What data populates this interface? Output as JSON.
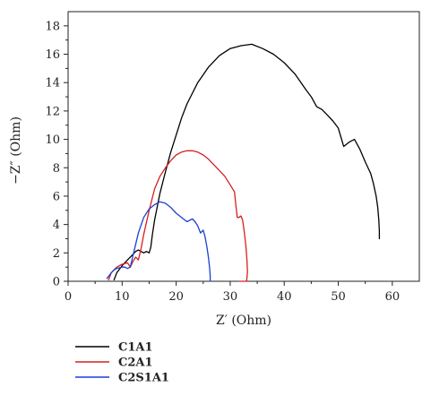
{
  "chart_data": {
    "type": "line",
    "xlabel": "Z′ (Ohm)",
    "ylabel": "−Z″ (Ohm)",
    "xlim": [
      0,
      65
    ],
    "ylim": [
      0,
      19
    ],
    "xticks": [
      "0",
      "10",
      "20",
      "30",
      "40",
      "50",
      "60"
    ],
    "yticks": [
      "0",
      "2",
      "4",
      "6",
      "8",
      "10",
      "12",
      "14",
      "16",
      "18"
    ],
    "grid": false,
    "legend_position": "bottom-left",
    "series": [
      {
        "name": "C1A1",
        "color": "#000000",
        "x": [
          8.5,
          9,
          10,
          11,
          12,
          12.5,
          13,
          13.5,
          14,
          14.5,
          15,
          15.3,
          15.6,
          16,
          17,
          18,
          19,
          20,
          21,
          22,
          24,
          26,
          28,
          30,
          32,
          34,
          36,
          38,
          40,
          42,
          44,
          45,
          46,
          47,
          48,
          49,
          50,
          51,
          52,
          53,
          54,
          55,
          56,
          56.5,
          57,
          57.3,
          57.5,
          57.6,
          57.6
        ],
        "y": [
          0.1,
          0.6,
          1.1,
          1.5,
          1.9,
          2.1,
          2.2,
          2.1,
          2.0,
          2.1,
          2.0,
          2.4,
          3.3,
          4.3,
          6.2,
          7.7,
          9.1,
          10.3,
          11.5,
          12.5,
          14.0,
          15.1,
          15.9,
          16.4,
          16.6,
          16.7,
          16.4,
          16.0,
          15.4,
          14.6,
          13.5,
          13.0,
          12.3,
          12.1,
          11.7,
          11.3,
          10.8,
          9.5,
          9.8,
          10.0,
          9.3,
          8.4,
          7.6,
          6.9,
          6.0,
          5.2,
          4.3,
          3.5,
          3.0
        ]
      },
      {
        "name": "C2A1",
        "color": "#d42020",
        "x": [
          7.5,
          8,
          9,
          10,
          11,
          11.5,
          12,
          12.5,
          13,
          13.5,
          14,
          15,
          16,
          17,
          18,
          19,
          20,
          21,
          22,
          23,
          24,
          25,
          26,
          27,
          28,
          29,
          30,
          30.8,
          31,
          31.3,
          31.6,
          32,
          32.3,
          32.6,
          32.9,
          33.1,
          33.2,
          33.1,
          33.0,
          32.8,
          32.5,
          31.8
        ],
        "y": [
          0.1,
          0.6,
          1.0,
          1.2,
          1.3,
          1.0,
          1.4,
          1.7,
          1.5,
          2.3,
          3.3,
          5.0,
          6.5,
          7.4,
          8.0,
          8.5,
          8.9,
          9.1,
          9.2,
          9.2,
          9.1,
          8.9,
          8.6,
          8.2,
          7.8,
          7.4,
          6.8,
          6.3,
          5.5,
          4.5,
          4.5,
          4.6,
          4.3,
          3.5,
          2.5,
          1.5,
          0.7,
          0.2,
          0.0,
          -0.1,
          0.0,
          0.0
        ]
      },
      {
        "name": "C2S1A1",
        "color": "#1a3fd6",
        "x": [
          7.2,
          7.6,
          8.0,
          8.5,
          9.0,
          9.5,
          10.0,
          10.5,
          11.0,
          11.5,
          12.0,
          12.5,
          13,
          14,
          15,
          16,
          17,
          18,
          19,
          20,
          21,
          22,
          23,
          23.5,
          24,
          24.5,
          25,
          25.3,
          25.7,
          26.0,
          26.2,
          26.3,
          26.3
        ],
        "y": [
          0.2,
          0.4,
          0.6,
          0.8,
          0.9,
          0.95,
          1.0,
          1.0,
          0.9,
          1.0,
          1.8,
          2.6,
          3.4,
          4.5,
          5.1,
          5.4,
          5.6,
          5.5,
          5.2,
          4.8,
          4.5,
          4.2,
          4.4,
          4.2,
          3.9,
          3.4,
          3.6,
          3.2,
          2.4,
          1.6,
          0.9,
          0.4,
          0.0
        ]
      }
    ]
  }
}
